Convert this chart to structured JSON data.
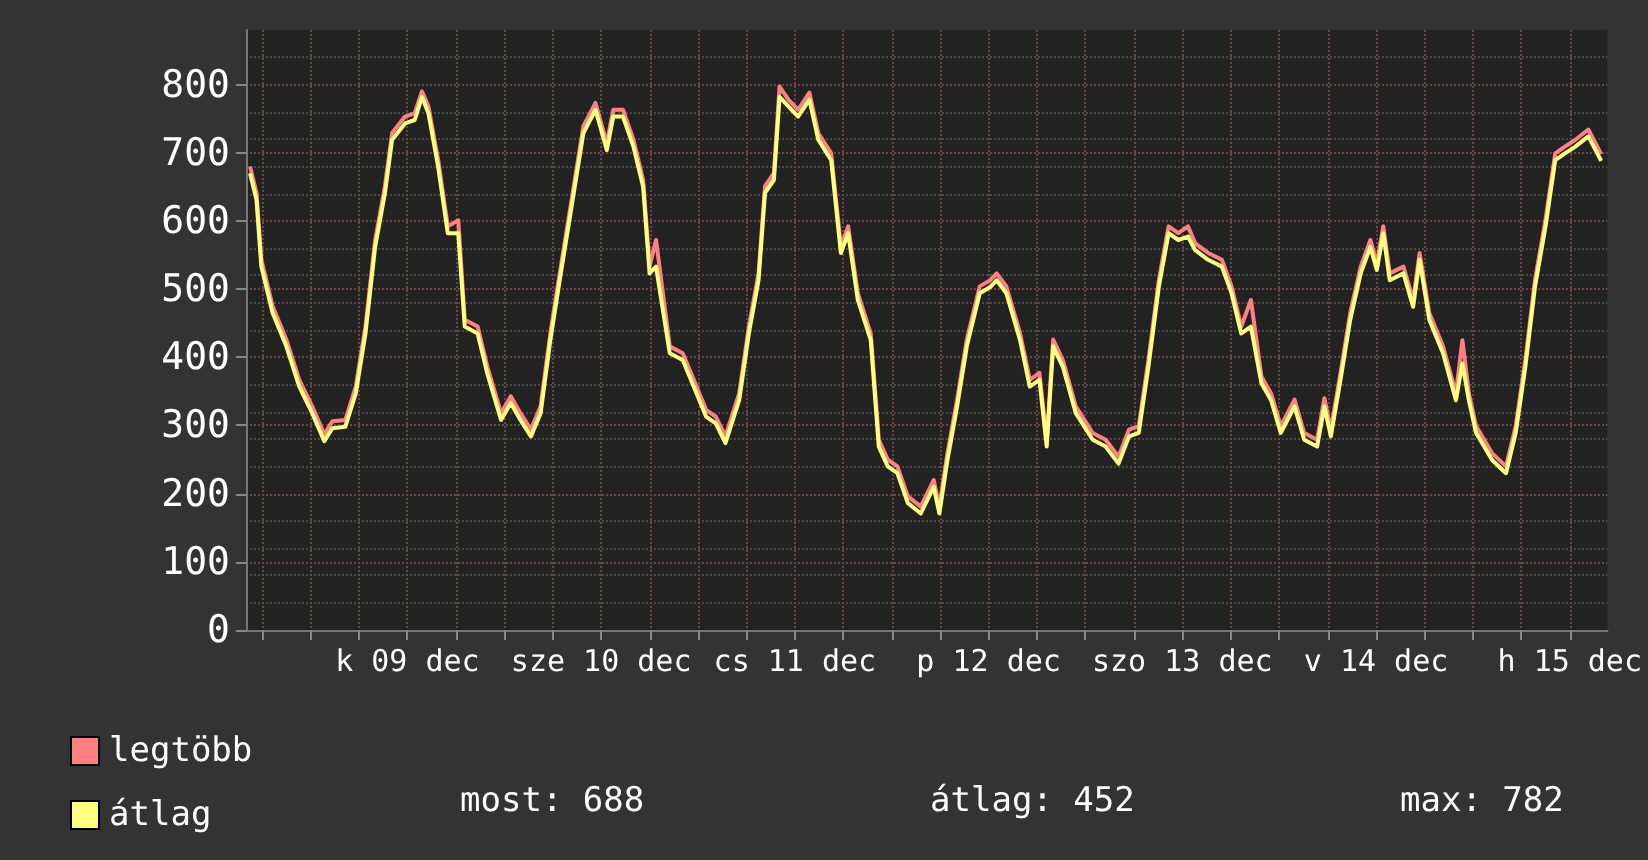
{
  "chart_data": {
    "type": "line",
    "x": [
      "--12-08T16:30",
      "--12-08T17:18",
      "--12-08T17:54",
      "--12-08T19:18",
      "--12-08T21:00",
      "--12-08T22:36",
      "--12-09T00:12",
      "--12-09T01:42",
      "--12-09T02:42",
      "--12-09T04:18",
      "--12-09T05:36",
      "--12-09T06:48",
      "--12-09T08:00",
      "--12-09T09:12",
      "--12-09T10:06",
      "--12-09T11:42",
      "--12-09T12:54",
      "--12-09T13:48",
      "--12-09T14:36",
      "--12-09T15:48",
      "--12-09T17:00",
      "--12-09T18:18",
      "--12-09T19:06",
      "--12-09T20:42",
      "--12-09T21:54",
      "--12-09T23:36",
      "--12-10T00:48",
      "--12-10T02:00",
      "--12-10T03:18",
      "--12-10T04:30",
      "--12-10T05:42",
      "--12-10T07:00",
      "--12-10T08:12",
      "--12-10T09:48",
      "--12-10T11:18",
      "--12-10T12:42",
      "--12-10T13:30",
      "--12-10T14:42",
      "--12-10T16:00",
      "--12-10T17:12",
      "--12-10T18:00",
      "--12-10T18:48",
      "--12-10T20:30",
      "--12-10T22:06",
      "--12-10T23:18",
      "--12-11T01:00",
      "--12-11T02:12",
      "--12-11T03:24",
      "--12-11T05:06",
      "--12-11T06:18",
      "--12-11T07:30",
      "--12-11T08:18",
      "--12-11T09:24",
      "--12-11T10:06",
      "--12-11T11:12",
      "--12-11T12:24",
      "--12-11T13:48",
      "--12-11T14:54",
      "--12-11T16:30",
      "--12-11T17:42",
      "--12-11T18:36",
      "--12-11T19:48",
      "--12-11T21:24",
      "--12-11T22:24",
      "--12-11T23:30",
      "--12-12T00:42",
      "--12-12T02:00",
      "--12-12T03:36",
      "--12-12T05:12",
      "--12-12T05:54",
      "--12-12T06:54",
      "--12-12T08:06",
      "--12-12T09:18",
      "--12-12T10:54",
      "--12-12T12:12",
      "--12-12T13:00",
      "--12-12T14:12",
      "--12-12T15:54",
      "--12-12T17:06",
      "--12-12T18:18",
      "--12-12T19:12",
      "--12-12T20:00",
      "--12-12T21:12",
      "--12-12T22:48",
      "--12-13T00:54",
      "--12-13T02:30",
      "--12-13T04:06",
      "--12-13T05:24",
      "--12-13T06:36",
      "--12-13T07:48",
      "--12-13T09:06",
      "--12-13T10:18",
      "--12-13T11:30",
      "--12-13T12:42",
      "--12-13T13:36",
      "--12-13T15:12",
      "--12-13T16:54",
      "--12-13T18:06",
      "--12-13T19:18",
      "--12-13T20:30",
      "--12-13T21:48",
      "--12-13T23:00",
      "--12-14T00:12",
      "--12-14T01:54",
      "--12-14T03:06",
      "--12-14T04:42",
      "--12-14T05:36",
      "--12-14T06:24",
      "--12-14T07:36",
      "--12-14T08:48",
      "--12-14T10:06",
      "--12-14T11:18",
      "--12-14T12:06",
      "--12-14T12:54",
      "--12-14T13:42",
      "--12-14T15:24",
      "--12-14T16:36",
      "--12-14T17:24",
      "--12-14T18:36",
      "--12-14T20:18",
      "--12-14T21:54",
      "--12-14T22:42",
      "--12-14T23:30",
      "--12-15T00:24",
      "--12-15T02:24",
      "--12-15T04:06",
      "--12-15T05:18",
      "--12-15T06:30",
      "--12-15T07:42",
      "--12-15T09:00",
      "--12-15T10:12",
      "--12-15T11:24",
      "--12-15T12:42",
      "--12-15T14:18",
      "--12-15T15:54"
    ],
    "series": [
      {
        "name": "legtöbb",
        "color": "#ff8080",
        "values": [
          680,
          641,
          543,
          475,
          426,
          367,
          328,
          287,
          306,
          308,
          357,
          445,
          572,
          650,
          729,
          753,
          758,
          790,
          768,
          690,
          592,
          601,
          455,
          445,
          386,
          318,
          343,
          318,
          294,
          328,
          435,
          533,
          621,
          739,
          773,
          714,
          763,
          763,
          719,
          660,
          533,
          572,
          416,
          406,
          372,
          323,
          313,
          284,
          347,
          445,
          523,
          651,
          670,
          797,
          778,
          763,
          788,
          729,
          699,
          563,
          592,
          494,
          435,
          279,
          250,
          240,
          196,
          181,
          220,
          181,
          259,
          338,
          426,
          504,
          513,
          523,
          504,
          435,
          367,
          377,
          279,
          426,
          396,
          328,
          289,
          279,
          254,
          294,
          299,
          396,
          514,
          592,
          582,
          592,
          567,
          553,
          543,
          504,
          445,
          484,
          372,
          347,
          299,
          338,
          289,
          279,
          340,
          294,
          377,
          465,
          533,
          572,
          538,
          592,
          523,
          533,
          484,
          553,
          465,
          416,
          347,
          425,
          347,
          299,
          259,
          240,
          299,
          396,
          514,
          602,
          699,
          709,
          719,
          734,
          698
        ]
      },
      {
        "name": "átlag",
        "color": "#ffff80",
        "values": [
          670,
          631,
          533,
          465,
          416,
          357,
          318,
          277,
          296,
          298,
          347,
          435,
          562,
          640,
          719,
          743,
          748,
          782,
          758,
          680,
          582,
          582,
          445,
          435,
          376,
          308,
          333,
          308,
          284,
          318,
          425,
          523,
          611,
          729,
          763,
          704,
          753,
          753,
          709,
          650,
          523,
          533,
          406,
          396,
          362,
          313,
          303,
          274,
          337,
          435,
          513,
          641,
          660,
          782,
          768,
          753,
          778,
          719,
          689,
          553,
          582,
          484,
          425,
          269,
          240,
          230,
          186,
          171,
          210,
          171,
          249,
          328,
          416,
          494,
          503,
          513,
          494,
          425,
          357,
          367,
          269,
          416,
          386,
          318,
          279,
          269,
          244,
          284,
          289,
          386,
          504,
          582,
          572,
          577,
          557,
          543,
          533,
          494,
          435,
          445,
          362,
          337,
          289,
          328,
          279,
          269,
          328,
          284,
          367,
          455,
          523,
          562,
          528,
          582,
          513,
          523,
          474,
          543,
          455,
          406,
          337,
          391,
          337,
          289,
          249,
          230,
          289,
          386,
          504,
          592,
          689,
          699,
          709,
          724,
          688
        ]
      }
    ],
    "xlim": [
      "--12-08T16:00",
      "--12-15T16:40"
    ],
    "xticks": [
      {
        "value": "--12-08T18:00",
        "label": null
      },
      {
        "value": "--12-09T00:00",
        "label": null
      },
      {
        "value": "--12-09T06:00",
        "label": null
      },
      {
        "value": "--12-09T12:00",
        "label": "k 09 dec"
      },
      {
        "value": "--12-09T18:00",
        "label": null
      },
      {
        "value": "--12-10T00:00",
        "label": null
      },
      {
        "value": "--12-10T06:00",
        "label": null
      },
      {
        "value": "--12-10T12:00",
        "label": "sze 10 dec"
      },
      {
        "value": "--12-10T18:00",
        "label": null
      },
      {
        "value": "--12-11T00:00",
        "label": null
      },
      {
        "value": "--12-11T06:00",
        "label": null
      },
      {
        "value": "--12-11T12:00",
        "label": "cs 11 dec"
      },
      {
        "value": "--12-11T18:00",
        "label": null
      },
      {
        "value": "--12-12T00:00",
        "label": null
      },
      {
        "value": "--12-12T06:00",
        "label": null
      },
      {
        "value": "--12-12T12:00",
        "label": "p 12 dec"
      },
      {
        "value": "--12-12T18:00",
        "label": null
      },
      {
        "value": "--12-13T00:00",
        "label": null
      },
      {
        "value": "--12-13T06:00",
        "label": null
      },
      {
        "value": "--12-13T12:00",
        "label": "szo 13 dec"
      },
      {
        "value": "--12-13T18:00",
        "label": null
      },
      {
        "value": "--12-14T00:00",
        "label": null
      },
      {
        "value": "--12-14T06:00",
        "label": null
      },
      {
        "value": "--12-14T12:00",
        "label": "v 14 dec"
      },
      {
        "value": "--12-14T18:00",
        "label": null
      },
      {
        "value": "--12-15T00:00",
        "label": null
      },
      {
        "value": "--12-15T06:00",
        "label": null
      },
      {
        "value": "--12-15T12:00",
        "label": "h 15 dec"
      }
    ],
    "ylim": [
      0,
      880
    ],
    "yticks": [
      0,
      100,
      200,
      300,
      400,
      500,
      600,
      700,
      800
    ],
    "annotations": [
      "most: 688",
      "átlag: 452",
      "max: 782"
    ],
    "grid": true,
    "legend": "bottom left",
    "marker": "none"
  }
}
